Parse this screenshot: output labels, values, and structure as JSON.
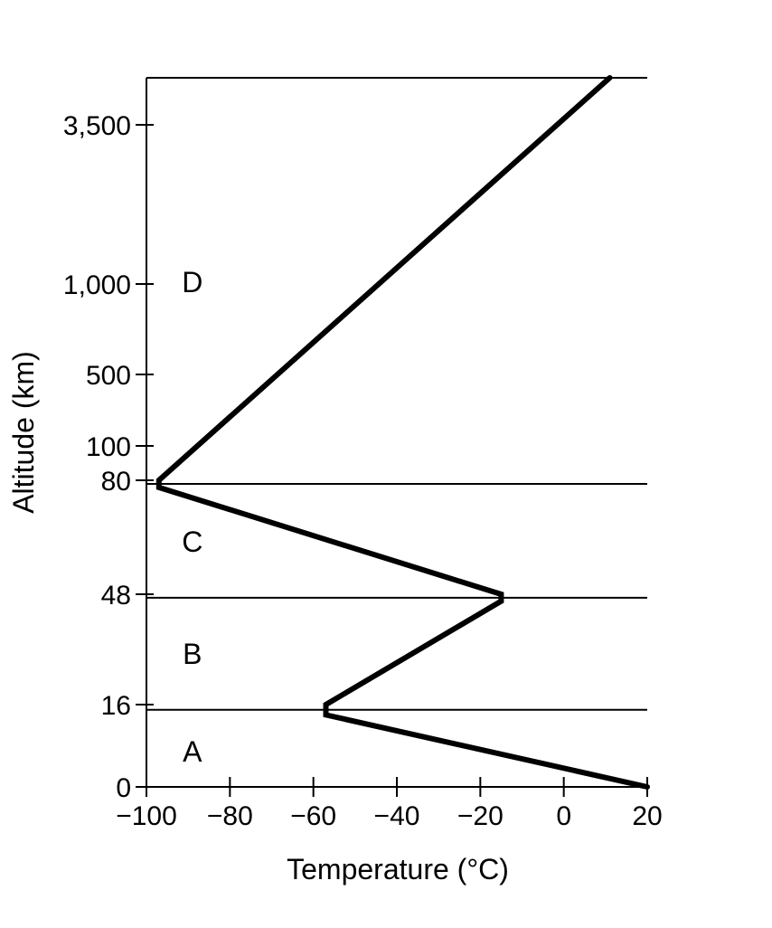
{
  "chart_data": {
    "type": "line",
    "title": "",
    "xlabel": "Temperature (°C)",
    "ylabel": "Altitude (km)",
    "x_ticks": [
      "−100",
      "−80",
      "−60",
      "−40",
      "−20",
      "0",
      "20"
    ],
    "y_ticks": [
      "0",
      "16",
      "48",
      "80",
      "100",
      "500",
      "1,000",
      "3,500"
    ],
    "xlim": [
      -100,
      20
    ],
    "y_scale": "nonlinear",
    "layers": [
      "A",
      "B",
      "C",
      "D"
    ],
    "series": [
      {
        "x": [
          20,
          -57,
          -57,
          -15,
          -15,
          -97,
          -97,
          11
        ],
        "y": [
          0,
          14,
          16,
          46,
          48,
          78,
          80,
          4500
        ]
      }
    ],
    "grid": false,
    "legend": "none"
  },
  "colors": {
    "line": "#000000",
    "background": "#ffffff"
  }
}
